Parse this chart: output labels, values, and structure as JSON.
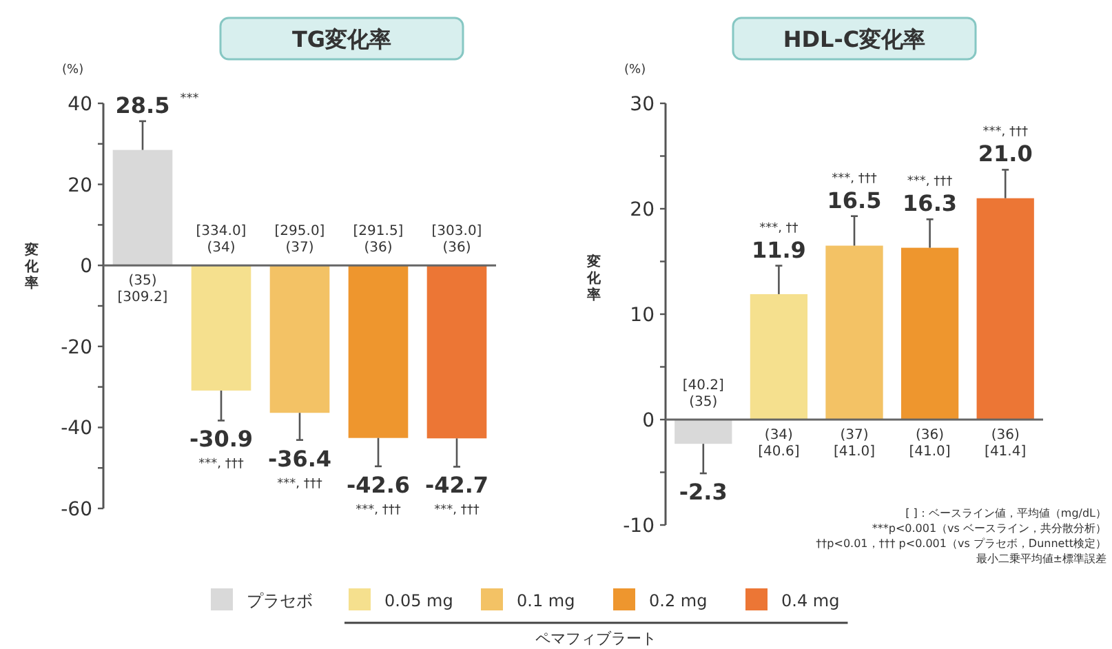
{
  "chart_data": [
    {
      "type": "bar",
      "title": "TG変化率",
      "ylabel": "変化率",
      "categories": [
        null,
        null,
        null,
        null,
        null
      ],
      "series": [
        {
          "name": "プラセボ",
          "color": "#d9d9d9",
          "values": [
            28.5,
            null,
            null,
            null,
            null
          ],
          "errors": [
            [
              28.5,
              35.6
            ],
            null,
            null,
            null,
            null
          ],
          "value_labels": [
            "28.5",
            null,
            null,
            null,
            null
          ]
        },
        {
          "name": "0.05 mg",
          "color": "#f5e08e",
          "values": [
            null,
            -30.9,
            null,
            null,
            null
          ],
          "errors": [
            null,
            [
              -38.3,
              -30.9
            ],
            null,
            null,
            null
          ],
          "value_labels": [
            null,
            "-30.9",
            null,
            null,
            null
          ]
        },
        {
          "name": "0.1 mg",
          "color": "#f3c265",
          "values": [
            null,
            null,
            -36.4,
            null,
            null
          ],
          "errors": [
            null,
            null,
            [
              -43.1,
              -36.4
            ],
            null,
            null
          ],
          "value_labels": [
            null,
            null,
            "-36.4",
            null,
            null
          ]
        },
        {
          "name": "0.2 mg",
          "color": "#ee962e",
          "values": [
            null,
            null,
            null,
            -42.6,
            null
          ],
          "errors": [
            null,
            null,
            null,
            [
              -49.6,
              -42.6
            ],
            null
          ],
          "value_labels": [
            null,
            null,
            null,
            "-42.6",
            null
          ]
        },
        {
          "name": "0.4 mg",
          "color": "#ec7635",
          "values": [
            null,
            null,
            null,
            null,
            -42.7
          ],
          "errors": [
            null,
            null,
            null,
            null,
            [
              -49.7,
              -42.7
            ]
          ],
          "value_labels": [
            null,
            null,
            null,
            null,
            "-42.7"
          ]
        }
      ],
      "ylim": [
        -60,
        40
      ],
      "yticks": [
        -60,
        {
          "value": -50,
          "label": null
        },
        -40,
        {
          "value": -30,
          "label": null
        },
        -20,
        {
          "value": -10,
          "label": null
        },
        0,
        {
          "value": 10,
          "label": null
        },
        20,
        {
          "value": 30,
          "label": null
        },
        40
      ],
      "legend": "bottom",
      "legend_title": "ペマフィブラート",
      "annotations": [
        "(%)",
        "***",
        "***, †††",
        "***, †††",
        "***, †††",
        "***, †††",
        "(35)\n[309.2]",
        "[334.0]\n(34)",
        "[295.0]\n(37)",
        "[291.5]\n(36)",
        "[303.0]\n(36)"
      ]
    },
    {
      "type": "bar",
      "title": "HDL-C変化率",
      "ylabel": "変化率",
      "categories": [
        null,
        null,
        null,
        null,
        null
      ],
      "values": [
        -2.3,
        11.9,
        16.5,
        16.3,
        21.0
      ],
      "colors": [
        "#d9d9d9",
        "#f5e08e",
        "#f3c265",
        "#ee962e",
        "#ec7635"
      ],
      "errors": [
        [
          -5.1,
          -2.3
        ],
        [
          11.9,
          14.6
        ],
        [
          16.5,
          19.3
        ],
        [
          16.3,
          19.0
        ],
        [
          21.0,
          23.7
        ]
      ],
      "value_labels": [
        "-2.3",
        "11.9",
        "16.5",
        "16.3",
        "21.0"
      ],
      "ylim": [
        -10,
        30
      ],
      "yticks": [
        -10,
        {
          "value": -5,
          "label": null
        },
        0,
        {
          "value": 5,
          "label": null
        },
        10,
        {
          "value": 15,
          "label": null
        },
        20,
        {
          "value": 25,
          "label": null
        },
        30
      ],
      "annotations": [
        "(%)",
        "***, ††",
        "***, †††",
        "***, †††",
        "***, †††",
        "[40.2]\n(35)",
        "(34)\n[40.6]",
        "(37)\n[41.0]",
        "(36)\n[41.0]",
        "(36)\n[41.4]",
        "[ ]：ベースライン値，平均値（mg/dL）",
        "***p<0.001（vs ベースライン，共分散分析）",
        "††p<0.01，††† p<0.001（vs プラセボ，Dunnett検定）",
        "最小二乗平均値±標準誤差"
      ]
    }
  ]
}
